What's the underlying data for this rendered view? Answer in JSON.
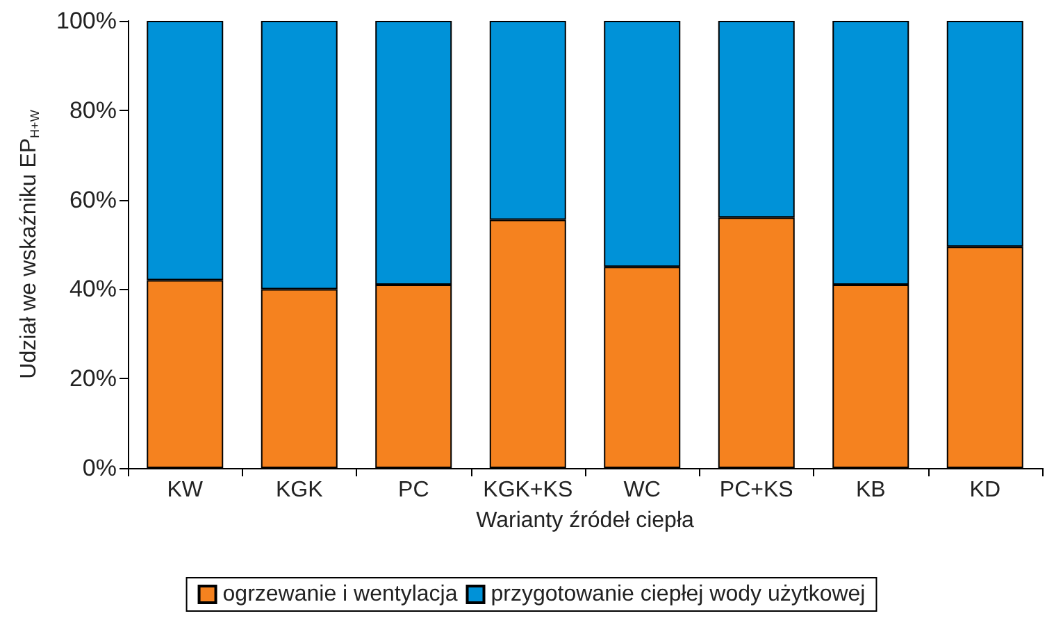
{
  "chart_data": {
    "type": "bar",
    "stacked": true,
    "xlabel": "Warianty źródeł ciepła",
    "ylabel": "Udział we wskaźniku EP$_{H+W}$",
    "categories": [
      "KW",
      "KGK",
      "PC",
      "KGK+KS",
      "WC",
      "PC+KS",
      "KB",
      "KD"
    ],
    "series": [
      {
        "name": "ogrzewanie i wentylacja",
        "color": "#f5821f",
        "values": [
          42,
          40,
          41,
          55.5,
          45,
          56,
          41,
          49.5
        ]
      },
      {
        "name": "przygotowanie ciepłej wody użytkowej",
        "color": "#0092d8",
        "values": [
          58,
          60,
          59,
          44.5,
          55,
          44,
          59,
          50.5
        ]
      }
    ],
    "ylim": [
      0,
      100
    ],
    "yticks": [
      {
        "value": 0,
        "label": "0%"
      },
      {
        "value": 20,
        "label": "20%"
      },
      {
        "value": 40,
        "label": "40%"
      },
      {
        "value": 60,
        "label": "60%"
      },
      {
        "value": 80,
        "label": "80%"
      },
      {
        "value": 100,
        "label": "100%"
      }
    ],
    "grid": false,
    "legend": "bottom"
  }
}
